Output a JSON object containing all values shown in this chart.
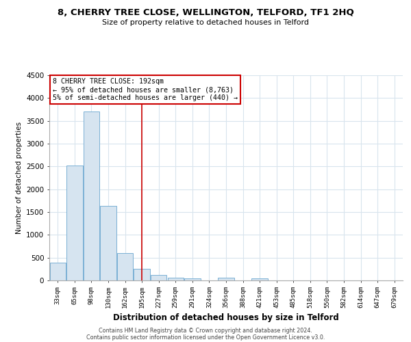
{
  "title": "8, CHERRY TREE CLOSE, WELLINGTON, TELFORD, TF1 2HQ",
  "subtitle": "Size of property relative to detached houses in Telford",
  "xlabel": "Distribution of detached houses by size in Telford",
  "ylabel": "Number of detached properties",
  "bar_labels": [
    "33sqm",
    "65sqm",
    "98sqm",
    "130sqm",
    "162sqm",
    "195sqm",
    "227sqm",
    "259sqm",
    "291sqm",
    "324sqm",
    "356sqm",
    "388sqm",
    "421sqm",
    "453sqm",
    "485sqm",
    "518sqm",
    "550sqm",
    "582sqm",
    "614sqm",
    "647sqm",
    "679sqm"
  ],
  "bar_heights": [
    390,
    2520,
    3700,
    1630,
    600,
    250,
    120,
    60,
    50,
    0,
    60,
    0,
    50,
    0,
    0,
    0,
    0,
    0,
    0,
    0,
    0
  ],
  "bar_color": "#d6e4f0",
  "bar_edge_color": "#7aafd4",
  "red_line_index": 5,
  "red_line_color": "#cc0000",
  "annotation_title": "8 CHERRY TREE CLOSE: 192sqm",
  "annotation_line1": "← 95% of detached houses are smaller (8,763)",
  "annotation_line2": "5% of semi-detached houses are larger (440) →",
  "annotation_box_edge": "#cc0000",
  "ylim": [
    0,
    4500
  ],
  "yticks": [
    0,
    500,
    1000,
    1500,
    2000,
    2500,
    3000,
    3500,
    4000,
    4500
  ],
  "footer1": "Contains HM Land Registry data © Crown copyright and database right 2024.",
  "footer2": "Contains public sector information licensed under the Open Government Licence v3.0.",
  "background_color": "#ffffff",
  "grid_color": "#d8e4ed"
}
